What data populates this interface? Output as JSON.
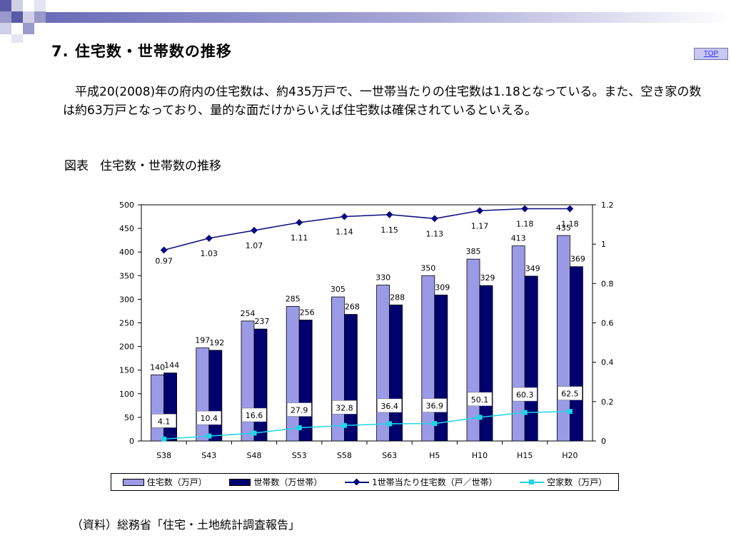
{
  "header": {
    "title": "7. 住宅数・世帯数の推移",
    "top_link": "TOP"
  },
  "body": {
    "paragraph": "　平成20(2008)年の府内の住宅数は、約435万戸で、一世帯当たりの住宅数は1.18となっている。また、空き家の数は約63万戸となっており、量的な面だけからいえば住宅数は確保されているといえる。",
    "figure_caption_prefix": "図表",
    "figure_caption": "住宅数・世帯数の推移",
    "source_note": "（資料）総務省「住宅・土地統計調査報告」"
  },
  "colors": {
    "housing": "#9a9ae6",
    "households": "#00006e",
    "ratio": "#0a0a80",
    "vacant": "#1ed6e6"
  },
  "chart_data": {
    "type": "bar",
    "categories": [
      "S38",
      "S43",
      "S48",
      "S53",
      "S58",
      "S63",
      "H5",
      "H10",
      "H15",
      "H20"
    ],
    "ylim": [
      0,
      500
    ],
    "yticks": [
      0,
      50,
      100,
      150,
      200,
      250,
      300,
      350,
      400,
      450,
      500
    ],
    "y2lim": [
      0,
      1.2
    ],
    "y2ticks": [
      "0",
      "0.2",
      "0.4",
      "0.6",
      "0.8",
      "1",
      "1.2"
    ],
    "series": [
      {
        "name": "住宅数（万戸）",
        "type": "bar",
        "axis": "left",
        "values": [
          140,
          197,
          254,
          285,
          305,
          330,
          350,
          385,
          413,
          435
        ]
      },
      {
        "name": "世帯数（万世帯）",
        "type": "bar",
        "axis": "left",
        "values": [
          144,
          192,
          237,
          256,
          268,
          288,
          309,
          329,
          349,
          369
        ]
      },
      {
        "name": "1世帯当たり住宅数（戸／世帯）",
        "type": "line",
        "axis": "right",
        "values": [
          0.97,
          1.03,
          1.07,
          1.11,
          1.14,
          1.15,
          1.13,
          1.17,
          1.18,
          1.18
        ]
      },
      {
        "name": "空家数（万戸）",
        "type": "line",
        "axis": "left",
        "values": [
          4.1,
          10.4,
          16.6,
          27.9,
          32.8,
          36.4,
          36.9,
          50.1,
          60.3,
          62.5
        ]
      }
    ],
    "legend_position": "bottom",
    "grid": false
  }
}
